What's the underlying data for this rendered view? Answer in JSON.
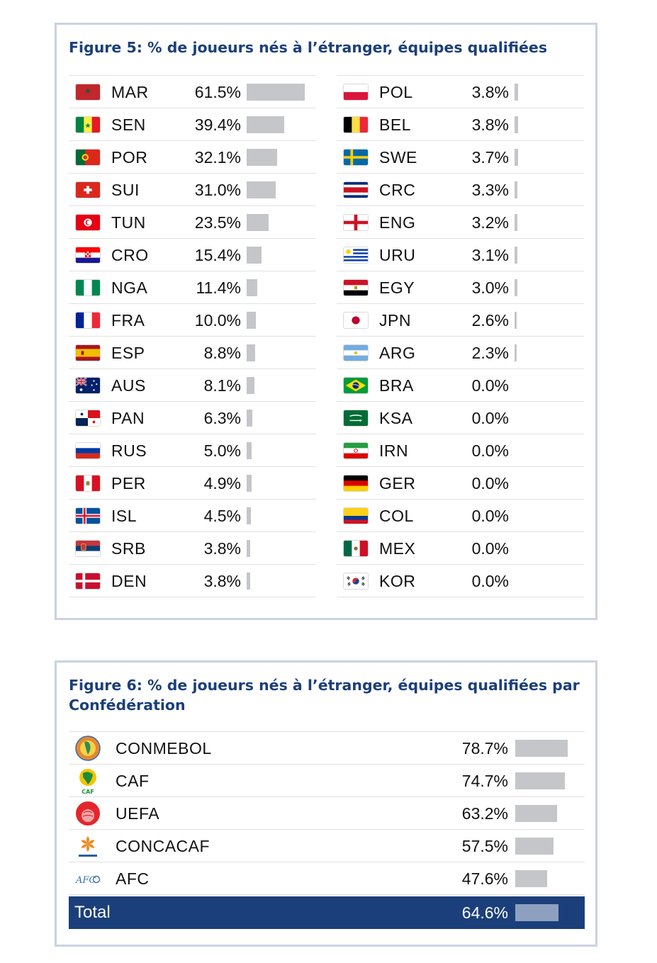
{
  "figure5": {
    "title": "Figure 5: % de joueurs nés à l’étranger, équipes qualifiées",
    "chart_data": {
      "type": "bar",
      "title": "Figure 5: % de joueurs nés à l’étranger, équipes qualifiées",
      "unit": "%",
      "xlim": [
        0,
        61.5
      ],
      "left": [
        {
          "code": "MAR",
          "pct": "61.5%",
          "value": 61.5,
          "flag": "morocco-flag"
        },
        {
          "code": "SEN",
          "pct": "39.4%",
          "value": 39.4,
          "flag": "senegal-flag"
        },
        {
          "code": "POR",
          "pct": "32.1%",
          "value": 32.1,
          "flag": "portugal-flag"
        },
        {
          "code": "SUI",
          "pct": "31.0%",
          "value": 31.0,
          "flag": "switzerland-flag"
        },
        {
          "code": "TUN",
          "pct": "23.5%",
          "value": 23.5,
          "flag": "tunisia-flag"
        },
        {
          "code": "CRO",
          "pct": "15.4%",
          "value": 15.4,
          "flag": "croatia-flag"
        },
        {
          "code": "NGA",
          "pct": "11.4%",
          "value": 11.4,
          "flag": "nigeria-flag"
        },
        {
          "code": "FRA",
          "pct": "10.0%",
          "value": 10.0,
          "flag": "france-flag"
        },
        {
          "code": "ESP",
          "pct": "8.8%",
          "value": 8.8,
          "flag": "spain-flag"
        },
        {
          "code": "AUS",
          "pct": "8.1%",
          "value": 8.1,
          "flag": "australia-flag"
        },
        {
          "code": "PAN",
          "pct": "6.3%",
          "value": 6.3,
          "flag": "panama-flag"
        },
        {
          "code": "RUS",
          "pct": "5.0%",
          "value": 5.0,
          "flag": "russia-flag"
        },
        {
          "code": "PER",
          "pct": "4.9%",
          "value": 4.9,
          "flag": "peru-flag"
        },
        {
          "code": "ISL",
          "pct": "4.5%",
          "value": 4.5,
          "flag": "iceland-flag"
        },
        {
          "code": "SRB",
          "pct": "3.8%",
          "value": 3.8,
          "flag": "serbia-flag"
        },
        {
          "code": "DEN",
          "pct": "3.8%",
          "value": 3.8,
          "flag": "denmark-flag"
        }
      ],
      "right": [
        {
          "code": "POL",
          "pct": "3.8%",
          "value": 3.8,
          "flag": "poland-flag"
        },
        {
          "code": "BEL",
          "pct": "3.8%",
          "value": 3.8,
          "flag": "belgium-flag"
        },
        {
          "code": "SWE",
          "pct": "3.7%",
          "value": 3.7,
          "flag": "sweden-flag"
        },
        {
          "code": "CRC",
          "pct": "3.3%",
          "value": 3.3,
          "flag": "costa-rica-flag"
        },
        {
          "code": "ENG",
          "pct": "3.2%",
          "value": 3.2,
          "flag": "england-flag"
        },
        {
          "code": "URU",
          "pct": "3.1%",
          "value": 3.1,
          "flag": "uruguay-flag"
        },
        {
          "code": "EGY",
          "pct": "3.0%",
          "value": 3.0,
          "flag": "egypt-flag"
        },
        {
          "code": "JPN",
          "pct": "2.6%",
          "value": 2.6,
          "flag": "japan-flag"
        },
        {
          "code": "ARG",
          "pct": "2.3%",
          "value": 2.3,
          "flag": "argentina-flag"
        },
        {
          "code": "BRA",
          "pct": "0.0%",
          "value": 0.0,
          "flag": "brazil-flag"
        },
        {
          "code": "KSA",
          "pct": "0.0%",
          "value": 0.0,
          "flag": "saudi-arabia-flag"
        },
        {
          "code": "IRN",
          "pct": "0.0%",
          "value": 0.0,
          "flag": "iran-flag"
        },
        {
          "code": "GER",
          "pct": "0.0%",
          "value": 0.0,
          "flag": "germany-flag"
        },
        {
          "code": "COL",
          "pct": "0.0%",
          "value": 0.0,
          "flag": "colombia-flag"
        },
        {
          "code": "MEX",
          "pct": "0.0%",
          "value": 0.0,
          "flag": "mexico-flag"
        },
        {
          "code": "KOR",
          "pct": "0.0%",
          "value": 0.0,
          "flag": "south-korea-flag"
        }
      ]
    }
  },
  "figure6": {
    "title": "Figure 6: % de joueurs nés à l’étranger, équipes qualifiées par Confédération",
    "chart_data": {
      "type": "bar",
      "title": "Figure 6: % de joueurs nés à l’étranger, équipes qualifiées par Confédération",
      "unit": "%",
      "xlim": [
        0,
        78.7
      ],
      "rows": [
        {
          "name": "CONMEBOL",
          "pct": "78.7%",
          "value": 78.7,
          "logo": "conmebol-logo"
        },
        {
          "name": "CAF",
          "pct": "74.7%",
          "value": 74.7,
          "logo": "caf-logo"
        },
        {
          "name": "UEFA",
          "pct": "63.2%",
          "value": 63.2,
          "logo": "uefa-logo"
        },
        {
          "name": "CONCACAF",
          "pct": "57.5%",
          "value": 57.5,
          "logo": "concacaf-logo"
        },
        {
          "name": "AFC",
          "pct": "47.6%",
          "value": 47.6,
          "logo": "afc-logo"
        }
      ],
      "total": {
        "name": "Total",
        "pct": "64.6%",
        "value": 64.6
      }
    }
  },
  "colors": {
    "title": "#1b3f7a",
    "bar": "#c4c6c9",
    "total_bg": "#1b3f7a",
    "total_bar": "#8ea0c0",
    "border": "#c9d3e1"
  }
}
